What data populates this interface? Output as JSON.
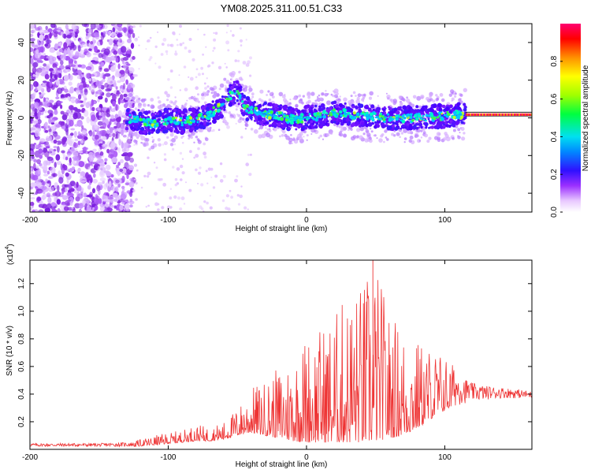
{
  "colors": {
    "signal": "#ee3333",
    "frame": "#000000",
    "trace_line": "#222222"
  },
  "chart_data": [
    {
      "type": "heatmap",
      "title": "YM08.2025.311.00.51.C33",
      "xlabel": "Height of straight line (km)",
      "ylabel": "Frequency (Hz)",
      "xlim": [
        -200,
        163
      ],
      "ylim": [
        -50,
        50
      ],
      "x_ticks": [
        -200,
        -100,
        0,
        100
      ],
      "y_ticks": [
        -40,
        -20,
        0,
        20,
        40
      ],
      "colorbar": {
        "label": "Normalized spectral amplitude",
        "range": [
          0,
          1
        ],
        "ticks": [
          "0.0",
          "0.2",
          "0.4",
          "0.6",
          "0.8"
        ]
      },
      "ridge_trace": {
        "description_points_x": [
          -130,
          -120,
          -110,
          -100,
          -90,
          -80,
          -70,
          -60,
          -55,
          -50,
          -45,
          -40,
          -30,
          -20,
          -10,
          0,
          10,
          20,
          30,
          40,
          60,
          80,
          100,
          115,
          163
        ],
        "description_points_y": [
          0,
          -2,
          -3,
          -1,
          -2,
          -1,
          2,
          7,
          12,
          14,
          6,
          4,
          2,
          1,
          -1,
          0,
          1,
          3,
          2,
          1,
          0,
          0,
          1,
          2,
          2
        ]
      },
      "horizontal_band": {
        "x_start": 115,
        "x_end": 163,
        "y_upper": 3,
        "y_lower": 1
      }
    },
    {
      "type": "line",
      "xlabel": "Height of straight line (km)",
      "ylabel": "SNR (10 * v/v)",
      "y_scale_label": "(x10",
      "y_scale_exponent": "4",
      "y_scale_suffix": ")",
      "xlim": [
        -200,
        163
      ],
      "ylim": [
        0,
        1.37
      ],
      "x_ticks": [
        -200,
        -100,
        0,
        100
      ],
      "y_ticks": [
        "0.2",
        "0.4",
        "0.6",
        "0.8",
        "1.0",
        "1.2"
      ],
      "series": [
        {
          "name": "SNR",
          "envelope_x": [
            -200,
            -150,
            -125,
            -110,
            -100,
            -90,
            -80,
            -70,
            -60,
            -50,
            -40,
            -30,
            -20,
            -10,
            0,
            10,
            20,
            30,
            40,
            50,
            60,
            70,
            80,
            90,
            100,
            110,
            120,
            130,
            140,
            150,
            163
          ],
          "envelope_max": [
            0.05,
            0.05,
            0.06,
            0.1,
            0.12,
            0.14,
            0.18,
            0.16,
            0.2,
            0.3,
            0.45,
            0.5,
            0.6,
            0.7,
            0.85,
            0.9,
            1.0,
            1.15,
            1.22,
            1.37,
            1.0,
            0.9,
            0.8,
            0.75,
            0.7,
            0.55,
            0.48,
            0.46,
            0.45,
            0.44,
            0.42
          ],
          "envelope_base": [
            0.02,
            0.02,
            0.02,
            0.03,
            0.04,
            0.05,
            0.06,
            0.06,
            0.07,
            0.1,
            0.12,
            0.1,
            0.08,
            0.06,
            0.05,
            0.05,
            0.05,
            0.05,
            0.05,
            0.06,
            0.08,
            0.1,
            0.15,
            0.22,
            0.28,
            0.32,
            0.35,
            0.36,
            0.37,
            0.37,
            0.37
          ]
        }
      ]
    }
  ]
}
